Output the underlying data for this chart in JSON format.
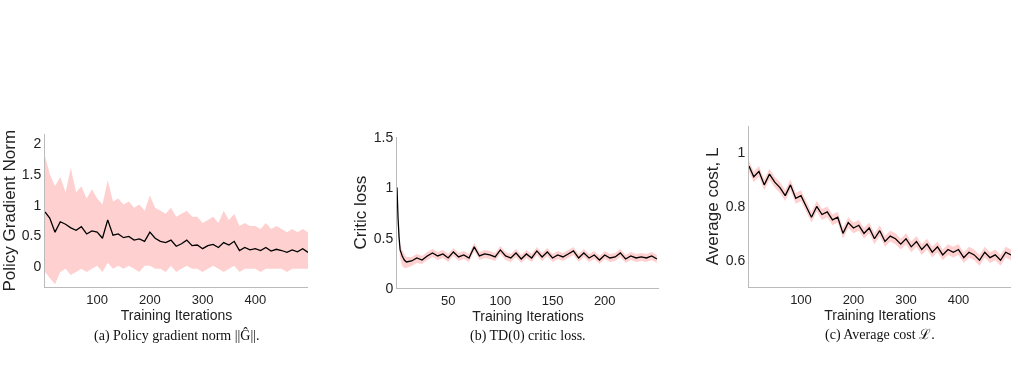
{
  "chart_data": [
    {
      "type": "line",
      "xlabel": "Training Iterations",
      "ylabel": "Policy Gradient Norm",
      "annotations": [
        "(a) Policy gradient norm ||Ĝ||."
      ],
      "xlim": [
        1,
        500
      ],
      "ylim": [
        -0.35,
        2.15
      ],
      "xticks": [
        100,
        200,
        300,
        400
      ],
      "yticks": [
        0,
        0.5,
        1,
        1.5,
        2
      ],
      "x": [
        1,
        10,
        20,
        30,
        40,
        50,
        60,
        70,
        80,
        90,
        100,
        110,
        120,
        130,
        140,
        150,
        160,
        170,
        180,
        190,
        200,
        210,
        220,
        230,
        240,
        250,
        260,
        270,
        280,
        290,
        300,
        310,
        320,
        330,
        340,
        350,
        360,
        370,
        380,
        390,
        400,
        410,
        420,
        430,
        440,
        450,
        460,
        470,
        480,
        490,
        500
      ],
      "series": [
        {
          "color": "#000000",
          "values": [
            0.88,
            0.78,
            0.55,
            0.72,
            0.68,
            0.62,
            0.58,
            0.64,
            0.52,
            0.57,
            0.55,
            0.45,
            0.75,
            0.5,
            0.52,
            0.46,
            0.48,
            0.42,
            0.44,
            0.4,
            0.55,
            0.45,
            0.4,
            0.38,
            0.42,
            0.32,
            0.36,
            0.42,
            0.33,
            0.34,
            0.28,
            0.33,
            0.35,
            0.3,
            0.38,
            0.34,
            0.4,
            0.25,
            0.3,
            0.26,
            0.28,
            0.25,
            0.3,
            0.24,
            0.27,
            0.25,
            0.22,
            0.26,
            0.23,
            0.28,
            0.22
          ],
          "upper": [
            1.8,
            1.5,
            1.3,
            1.45,
            1.2,
            1.6,
            1.2,
            1.3,
            1.1,
            1.25,
            1.1,
            1.0,
            1.4,
            1.05,
            1.1,
            1.0,
            1.05,
            0.95,
            1.0,
            0.9,
            1.15,
            0.95,
            0.9,
            0.85,
            0.95,
            0.8,
            0.85,
            0.9,
            0.8,
            0.8,
            0.7,
            0.75,
            0.8,
            0.7,
            0.9,
            0.75,
            0.85,
            0.65,
            0.7,
            0.65,
            0.65,
            0.6,
            0.7,
            0.6,
            0.65,
            0.6,
            0.55,
            0.6,
            0.55,
            0.6,
            0.55
          ],
          "lower": [
            -0.1,
            -0.2,
            -0.3,
            -0.1,
            -0.05,
            -0.15,
            -0.1,
            -0.05,
            -0.1,
            -0.05,
            0.0,
            -0.1,
            0.05,
            -0.05,
            0.0,
            -0.05,
            0.0,
            -0.05,
            -0.1,
            0.0,
            0.0,
            -0.05,
            -0.05,
            -0.1,
            0.0,
            -0.1,
            -0.05,
            0.0,
            -0.05,
            -0.05,
            -0.1,
            -0.05,
            0.0,
            -0.05,
            -0.1,
            -0.05,
            0.0,
            -0.1,
            -0.05,
            -0.05,
            -0.05,
            -0.1,
            -0.05,
            -0.05,
            -0.05,
            -0.05,
            -0.1,
            -0.05,
            -0.05,
            -0.05,
            -0.05
          ]
        }
      ]
    },
    {
      "type": "line",
      "xlabel": "Training Iterations",
      "ylabel": "Critic loss",
      "annotations": [
        "(b) TD(0) critic loss."
      ],
      "xlim": [
        1,
        252
      ],
      "ylim": [
        0,
        1.5
      ],
      "xticks": [
        50,
        100,
        150,
        200
      ],
      "yticks": [
        0,
        0.5,
        1,
        1.5
      ],
      "x": [
        1,
        2,
        3,
        4,
        6,
        8,
        10,
        15,
        20,
        25,
        30,
        35,
        40,
        45,
        50,
        55,
        60,
        65,
        70,
        75,
        80,
        85,
        90,
        95,
        100,
        105,
        110,
        115,
        120,
        125,
        130,
        135,
        140,
        145,
        150,
        155,
        160,
        165,
        170,
        175,
        180,
        185,
        190,
        195,
        200,
        205,
        210,
        215,
        220,
        225,
        230,
        235,
        240,
        245,
        250
      ],
      "series": [
        {
          "color": "#000000",
          "values": [
            1.0,
            0.7,
            0.5,
            0.38,
            0.32,
            0.28,
            0.26,
            0.27,
            0.3,
            0.28,
            0.32,
            0.35,
            0.32,
            0.34,
            0.3,
            0.36,
            0.31,
            0.33,
            0.3,
            0.41,
            0.32,
            0.34,
            0.33,
            0.31,
            0.38,
            0.32,
            0.3,
            0.35,
            0.29,
            0.34,
            0.3,
            0.37,
            0.31,
            0.36,
            0.3,
            0.33,
            0.31,
            0.34,
            0.37,
            0.3,
            0.35,
            0.3,
            0.33,
            0.28,
            0.33,
            0.3,
            0.31,
            0.35,
            0.29,
            0.32,
            0.3,
            0.31,
            0.3,
            0.32,
            0.29
          ],
          "upper": [
            1.02,
            0.74,
            0.55,
            0.43,
            0.38,
            0.34,
            0.31,
            0.31,
            0.34,
            0.32,
            0.36,
            0.39,
            0.36,
            0.38,
            0.34,
            0.4,
            0.35,
            0.37,
            0.34,
            0.45,
            0.36,
            0.38,
            0.37,
            0.35,
            0.42,
            0.36,
            0.34,
            0.39,
            0.33,
            0.38,
            0.34,
            0.41,
            0.35,
            0.4,
            0.34,
            0.37,
            0.35,
            0.38,
            0.41,
            0.34,
            0.39,
            0.34,
            0.37,
            0.32,
            0.37,
            0.34,
            0.35,
            0.39,
            0.33,
            0.36,
            0.34,
            0.35,
            0.34,
            0.36,
            0.33
          ],
          "lower": [
            0.98,
            0.66,
            0.45,
            0.3,
            0.22,
            0.2,
            0.2,
            0.22,
            0.25,
            0.24,
            0.28,
            0.31,
            0.28,
            0.3,
            0.26,
            0.32,
            0.27,
            0.29,
            0.26,
            0.37,
            0.28,
            0.3,
            0.29,
            0.27,
            0.34,
            0.28,
            0.26,
            0.31,
            0.25,
            0.3,
            0.26,
            0.33,
            0.27,
            0.32,
            0.26,
            0.29,
            0.27,
            0.3,
            0.33,
            0.26,
            0.31,
            0.26,
            0.29,
            0.24,
            0.29,
            0.26,
            0.27,
            0.31,
            0.25,
            0.28,
            0.26,
            0.27,
            0.26,
            0.28,
            0.25
          ]
        }
      ]
    },
    {
      "type": "line",
      "xlabel": "Training Iterations",
      "ylabel": "Average cost, L",
      "annotations": [
        "(c) Average cost ℒ."
      ],
      "xlim": [
        1,
        500
      ],
      "ylim": [
        0.5,
        1.1
      ],
      "xticks": [
        100,
        200,
        300,
        400
      ],
      "yticks": [
        0.6,
        0.8,
        1
      ],
      "x": [
        1,
        10,
        20,
        30,
        40,
        50,
        60,
        70,
        80,
        90,
        100,
        110,
        120,
        130,
        140,
        150,
        160,
        170,
        180,
        190,
        200,
        210,
        220,
        230,
        240,
        250,
        260,
        270,
        280,
        290,
        300,
        310,
        320,
        330,
        340,
        350,
        360,
        370,
        380,
        390,
        400,
        410,
        420,
        430,
        440,
        450,
        460,
        470,
        480,
        490,
        500
      ],
      "series": [
        {
          "color": "#000000",
          "values": [
            0.95,
            0.91,
            0.93,
            0.88,
            0.92,
            0.89,
            0.87,
            0.84,
            0.88,
            0.83,
            0.84,
            0.8,
            0.76,
            0.8,
            0.77,
            0.78,
            0.75,
            0.76,
            0.7,
            0.74,
            0.72,
            0.73,
            0.7,
            0.72,
            0.68,
            0.71,
            0.67,
            0.69,
            0.68,
            0.66,
            0.68,
            0.65,
            0.67,
            0.64,
            0.66,
            0.63,
            0.65,
            0.62,
            0.64,
            0.63,
            0.64,
            0.61,
            0.63,
            0.62,
            0.6,
            0.63,
            0.61,
            0.62,
            0.6,
            0.63,
            0.62
          ],
          "upper": [
            0.97,
            0.93,
            0.95,
            0.9,
            0.94,
            0.91,
            0.89,
            0.86,
            0.9,
            0.85,
            0.86,
            0.82,
            0.78,
            0.82,
            0.79,
            0.8,
            0.77,
            0.78,
            0.72,
            0.76,
            0.74,
            0.75,
            0.72,
            0.74,
            0.7,
            0.73,
            0.69,
            0.71,
            0.7,
            0.68,
            0.7,
            0.67,
            0.69,
            0.66,
            0.68,
            0.65,
            0.67,
            0.64,
            0.66,
            0.65,
            0.66,
            0.63,
            0.65,
            0.64,
            0.62,
            0.65,
            0.63,
            0.64,
            0.62,
            0.65,
            0.64
          ],
          "lower": [
            0.93,
            0.89,
            0.91,
            0.86,
            0.9,
            0.87,
            0.85,
            0.82,
            0.86,
            0.81,
            0.82,
            0.78,
            0.74,
            0.78,
            0.75,
            0.76,
            0.73,
            0.74,
            0.68,
            0.72,
            0.7,
            0.71,
            0.68,
            0.7,
            0.66,
            0.69,
            0.65,
            0.67,
            0.66,
            0.64,
            0.66,
            0.63,
            0.65,
            0.62,
            0.64,
            0.61,
            0.63,
            0.6,
            0.62,
            0.61,
            0.62,
            0.59,
            0.61,
            0.6,
            0.58,
            0.61,
            0.59,
            0.6,
            0.58,
            0.61,
            0.6
          ]
        }
      ]
    }
  ]
}
